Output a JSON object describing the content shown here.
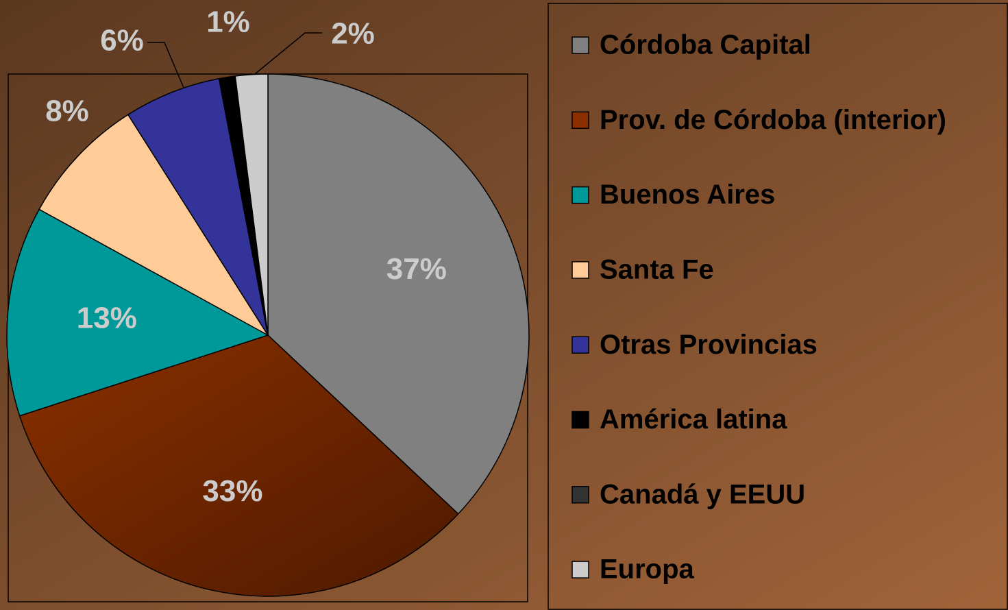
{
  "chart_data": {
    "type": "pie",
    "categories": [
      "Córdoba Capital",
      "Prov. de Córdoba (interior)",
      "Buenos Aires",
      "Santa Fe",
      "Otras Provincias",
      "América latina",
      "Canadá y EEUU",
      "Europa"
    ],
    "values": [
      37,
      33,
      13,
      8,
      6,
      1,
      0,
      2
    ],
    "value_labels": [
      "37%",
      "33%",
      "13%",
      "8%",
      "6%",
      "1%",
      null,
      "2%"
    ],
    "colors": [
      "#808080",
      "#8b2f00",
      "#009999",
      "#ffcc99",
      "#333399",
      "#000000",
      "#333333",
      "#cccccc"
    ],
    "legend": "right"
  }
}
